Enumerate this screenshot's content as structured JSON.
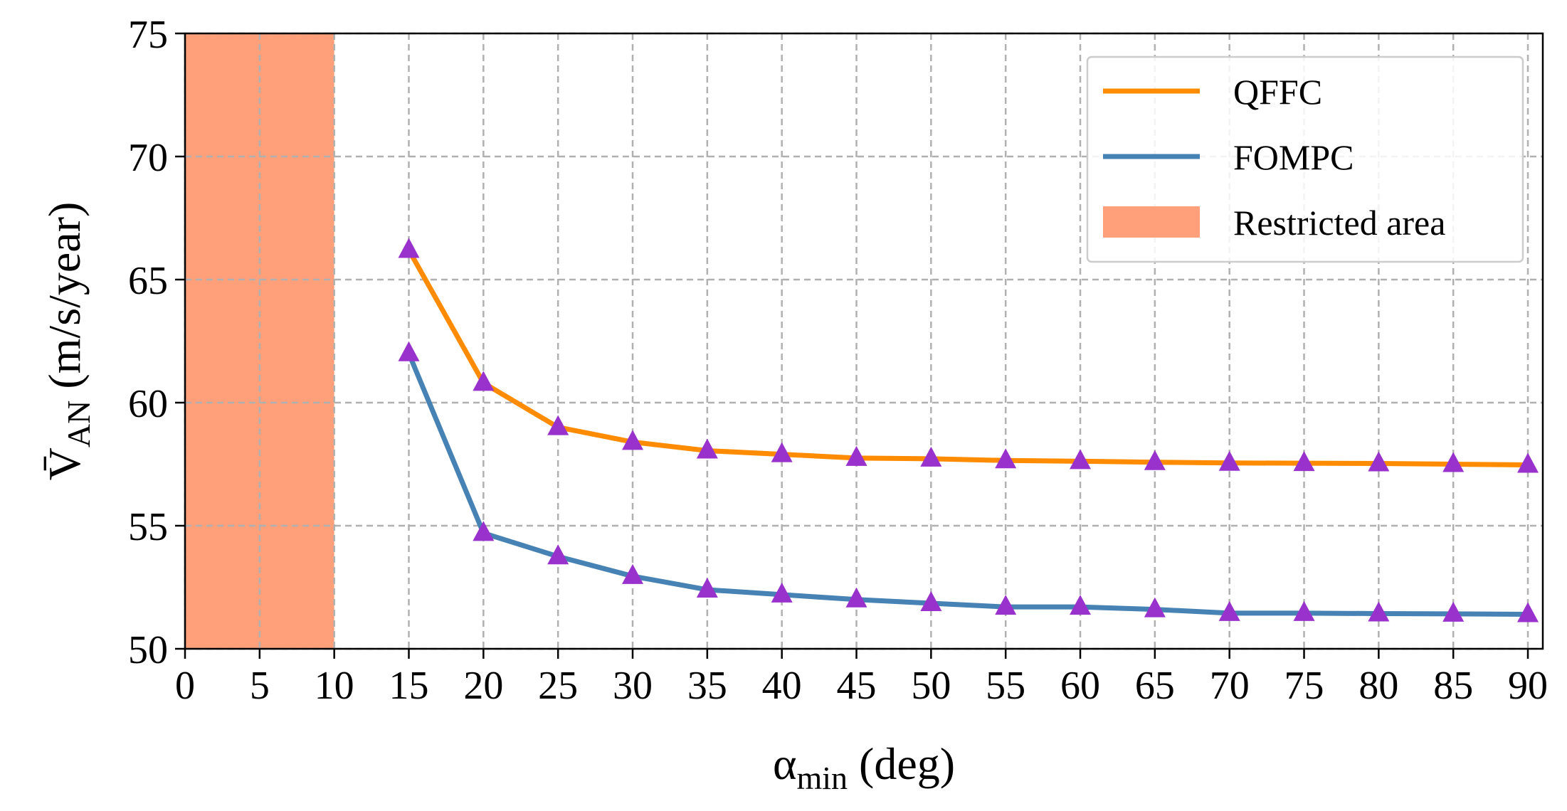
{
  "chart_data": {
    "type": "line",
    "xlabel": "α",
    "xlabel_sub": "min",
    "xlabel_unit": "(deg)",
    "ylabel_main": "V̄",
    "ylabel_sub": "AN",
    "ylabel_unit": "(m/s/year)",
    "xlim": [
      0,
      91
    ],
    "ylim": [
      50,
      75
    ],
    "xticks": [
      0,
      5,
      10,
      15,
      20,
      25,
      30,
      35,
      40,
      45,
      50,
      55,
      60,
      65,
      70,
      75,
      80,
      85,
      90
    ],
    "yticks": [
      50,
      55,
      60,
      65,
      70,
      75
    ],
    "grid": true,
    "legend_position": "top-right",
    "restricted_area": {
      "label": "Restricted area",
      "x_from": 0,
      "x_to": 10,
      "color": "#FFA07A"
    },
    "x": [
      15,
      20,
      25,
      30,
      35,
      40,
      45,
      50,
      55,
      60,
      65,
      70,
      75,
      80,
      85,
      90
    ],
    "series": [
      {
        "name": "QFFC",
        "color": "#FF8C00",
        "values": [
          66.2,
          60.8,
          59.0,
          58.4,
          58.05,
          57.9,
          57.75,
          57.72,
          57.65,
          57.62,
          57.58,
          57.55,
          57.54,
          57.53,
          57.5,
          57.47
        ]
      },
      {
        "name": "FOMPC",
        "color": "#4682B4",
        "values": [
          62.0,
          54.7,
          53.75,
          52.95,
          52.4,
          52.2,
          52.0,
          51.85,
          51.7,
          51.7,
          51.6,
          51.45,
          51.45,
          51.43,
          51.42,
          51.4
        ]
      }
    ],
    "marker": {
      "shape": "triangle",
      "color": "#9932CC"
    }
  }
}
